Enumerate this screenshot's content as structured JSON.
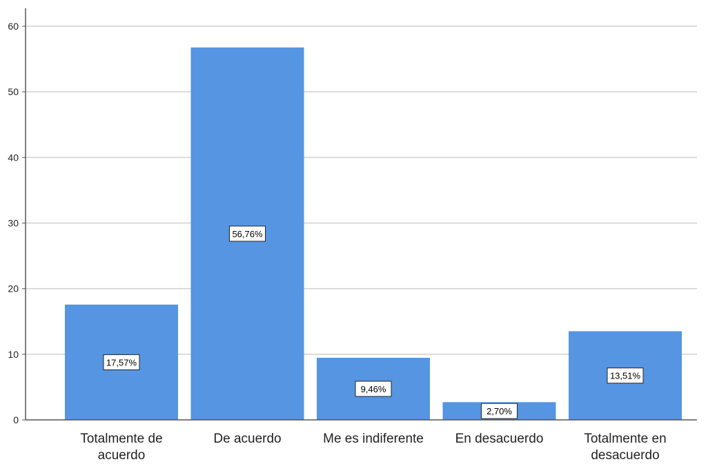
{
  "chart_data": {
    "type": "bar",
    "categories": [
      [
        "Totalmente de",
        "acuerdo"
      ],
      [
        "De acuerdo"
      ],
      [
        "Me es indiferente"
      ],
      [
        "En desacuerdo"
      ],
      [
        "Totalmente en",
        "desacuerdo"
      ]
    ],
    "values": [
      17.57,
      56.76,
      9.46,
      2.7,
      13.51
    ],
    "data_labels": [
      "17,57%",
      "56,76%",
      "9,46%",
      "2,70%",
      "13,51%"
    ],
    "ylim": [
      0,
      60
    ],
    "yticks": [
      0,
      10,
      20,
      30,
      40,
      50,
      60
    ],
    "grid": true,
    "bar_color": "#5595e2",
    "grid_color": "#cfcfcf",
    "axis_color": "#555555"
  }
}
